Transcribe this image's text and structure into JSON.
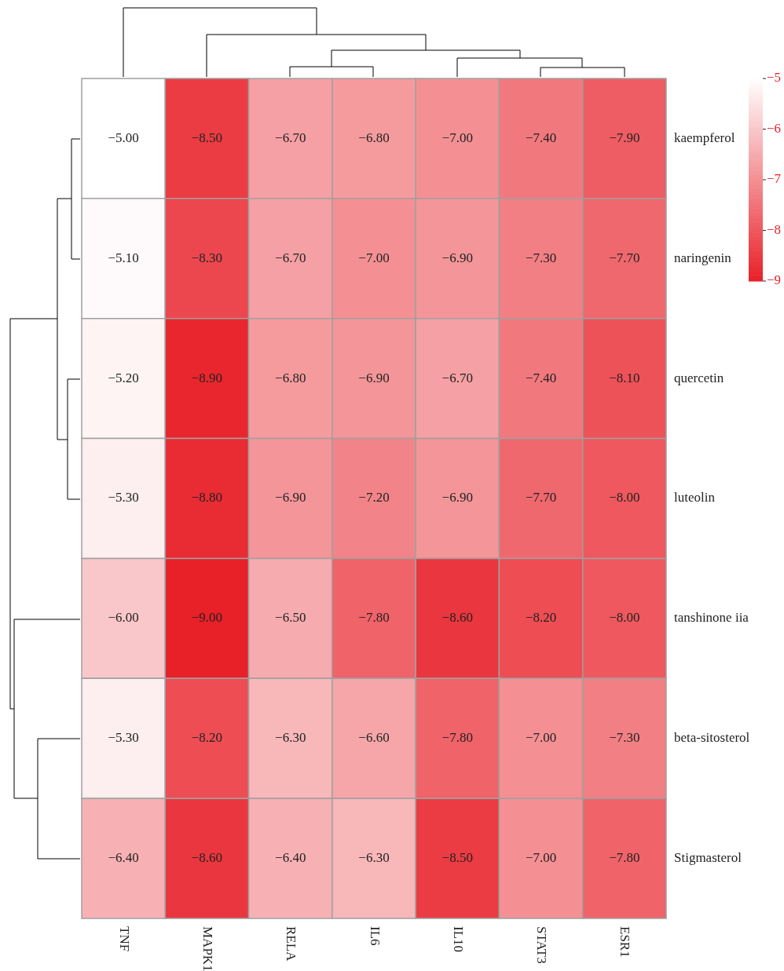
{
  "chart_data": {
    "type": "heatmap",
    "categories": [
      "TNF",
      "MAPK1",
      "RELA",
      "IL6",
      "IL10",
      "STAT3",
      "ESR1"
    ],
    "y_categories": [
      "kaempferol",
      "naringenin",
      "quercetin",
      "luteolin",
      "tanshinone iia",
      "beta-sitosterol",
      "Stigmasterol"
    ],
    "cells": [
      [
        -5.0,
        -8.5,
        -6.7,
        -6.8,
        -7.0,
        -7.4,
        -7.9
      ],
      [
        -5.1,
        -8.3,
        -6.7,
        -7.0,
        -6.9,
        -7.3,
        -7.7
      ],
      [
        -5.2,
        -8.9,
        -6.8,
        -6.9,
        -6.7,
        -7.4,
        -8.1
      ],
      [
        -5.3,
        -8.8,
        -6.9,
        -7.2,
        -6.9,
        -7.7,
        -8.0
      ],
      [
        -6.0,
        -9.0,
        -6.5,
        -7.8,
        -8.6,
        -8.2,
        -8.0
      ],
      [
        -5.3,
        -8.2,
        -6.3,
        -6.6,
        -7.8,
        -7.0,
        -7.3
      ],
      [
        -6.4,
        -8.6,
        -6.4,
        -6.3,
        -8.5,
        -7.0,
        -7.8
      ]
    ],
    "cell_labels": [
      [
        "−5.00",
        "−8.50",
        "−6.70",
        "−6.80",
        "−7.00",
        "−7.40",
        "−7.90"
      ],
      [
        "−5.10",
        "−8.30",
        "−6.70",
        "−7.00",
        "−6.90",
        "−7.30",
        "−7.70"
      ],
      [
        "−5.20",
        "−8.90",
        "−6.80",
        "−6.90",
        "−6.70",
        "−7.40",
        "−8.10"
      ],
      [
        "−5.30",
        "−8.80",
        "−6.90",
        "−7.20",
        "−6.90",
        "−7.70",
        "−8.00"
      ],
      [
        "−6.00",
        "−9.00",
        "−6.50",
        "−7.80",
        "−8.60",
        "−8.20",
        "−8.00"
      ],
      [
        "−5.30",
        "−8.20",
        "−6.30",
        "−6.60",
        "−7.80",
        "−7.00",
        "−7.30"
      ],
      [
        "−6.40",
        "−8.60",
        "−6.40",
        "−6.30",
        "−8.50",
        "−7.00",
        "−7.80"
      ]
    ],
    "clim": [
      -5,
      -9
    ],
    "cticks": [
      {
        "value": -5,
        "label": "−5"
      },
      {
        "value": -6,
        "label": "−6"
      },
      {
        "value": -7,
        "label": "−7"
      },
      {
        "value": -8,
        "label": "−8"
      },
      {
        "value": -9,
        "label": "−9"
      }
    ]
  }
}
